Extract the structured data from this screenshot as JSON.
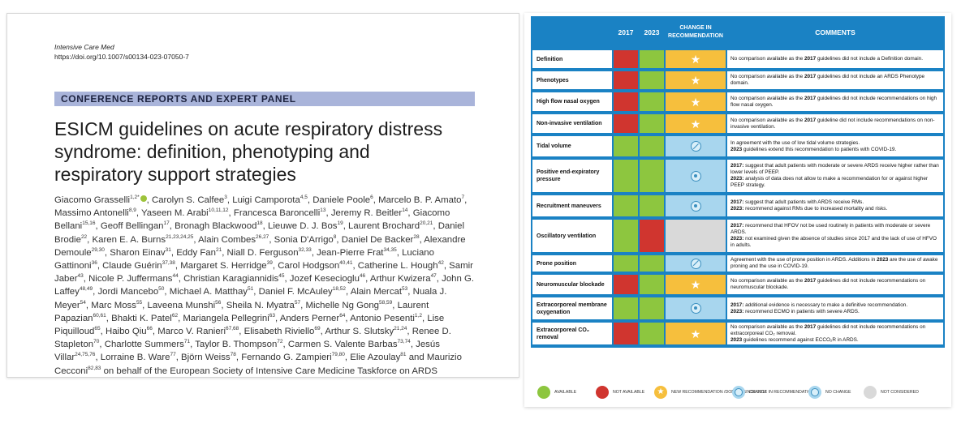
{
  "paper": {
    "journal": "Intensive Care Med",
    "doi": "https://doi.org/10.1007/s00134-023-07050-7",
    "section": "CONFERENCE REPORTS AND EXPERT PANEL",
    "title": "ESICM guidelines on acute respiratory distress syndrome: definition, phenotyping and respiratory support strategies",
    "authors": [
      {
        "n": "Giacomo Grasselli",
        "s": "1,2*",
        "orcid": true
      },
      {
        "n": "Carolyn S. Calfee",
        "s": "3"
      },
      {
        "n": "Luigi Camporota",
        "s": "4,5"
      },
      {
        "n": "Daniele Poole",
        "s": "6"
      },
      {
        "n": "Marcelo B. P. Amato",
        "s": "7"
      },
      {
        "n": "Massimo Antonelli",
        "s": "8,9"
      },
      {
        "n": "Yaseen M. Arabi",
        "s": "10,11,12"
      },
      {
        "n": "Francesca Baroncelli",
        "s": "13"
      },
      {
        "n": "Jeremy R. Beitler",
        "s": "14"
      },
      {
        "n": "Giacomo Bellani",
        "s": "15,16"
      },
      {
        "n": "Geoff Bellingan",
        "s": "17"
      },
      {
        "n": "Bronagh Blackwood",
        "s": "18"
      },
      {
        "n": "Lieuwe D. J. Bos",
        "s": "19"
      },
      {
        "n": "Laurent Brochard",
        "s": "20,21"
      },
      {
        "n": "Daniel Brodie",
        "s": "22"
      },
      {
        "n": "Karen E. A. Burns",
        "s": "21,23,24,25"
      },
      {
        "n": "Alain Combes",
        "s": "26,27"
      },
      {
        "n": "Sonia D'Arrigo",
        "s": "8"
      },
      {
        "n": "Daniel De Backer",
        "s": "28"
      },
      {
        "n": "Alexandre Demoule",
        "s": "29,30"
      },
      {
        "n": "Sharon Einav",
        "s": "31"
      },
      {
        "n": "Eddy Fan",
        "s": "21"
      },
      {
        "n": "Niall D. Ferguson",
        "s": "32,33"
      },
      {
        "n": "Jean-Pierre Frat",
        "s": "34,35"
      },
      {
        "n": "Luciano Gattinoni",
        "s": "36"
      },
      {
        "n": "Claude Guérin",
        "s": "37,38"
      },
      {
        "n": "Margaret S. Herridge",
        "s": "39"
      },
      {
        "n": "Carol Hodgson",
        "s": "40,41"
      },
      {
        "n": "Catherine L. Hough",
        "s": "42"
      },
      {
        "n": "Samir Jaber",
        "s": "43"
      },
      {
        "n": "Nicole P. Juffermans",
        "s": "44"
      },
      {
        "n": "Christian Karagiannidis",
        "s": "45"
      },
      {
        "n": "Jozef Kesecioglu",
        "s": "46"
      },
      {
        "n": "Arthur Kwizera",
        "s": "47"
      },
      {
        "n": "John G. Laffey",
        "s": "48,49"
      },
      {
        "n": "Jordi Mancebo",
        "s": "50"
      },
      {
        "n": "Michael A. Matthay",
        "s": "51"
      },
      {
        "n": "Daniel F. McAuley",
        "s": "18,52"
      },
      {
        "n": "Alain Mercat",
        "s": "53"
      },
      {
        "n": "Nuala J. Meyer",
        "s": "54"
      },
      {
        "n": "Marc Moss",
        "s": "55"
      },
      {
        "n": "Laveena Munshi",
        "s": "56"
      },
      {
        "n": "Sheila N. Myatra",
        "s": "57"
      },
      {
        "n": "Michelle Ng Gong",
        "s": "58,59"
      },
      {
        "n": "Laurent Papazian",
        "s": "60,61"
      },
      {
        "n": "Bhakti K. Patel",
        "s": "62"
      },
      {
        "n": "Mariangela Pellegrini",
        "s": "63"
      },
      {
        "n": "Anders Perner",
        "s": "64"
      },
      {
        "n": "Antonio Pesenti",
        "s": "1,2"
      },
      {
        "n": "Lise Piquilloud",
        "s": "65"
      },
      {
        "n": "Haibo Qiu",
        "s": "66"
      },
      {
        "n": "Marco V. Ranieri",
        "s": "67,68"
      },
      {
        "n": "Elisabeth Riviello",
        "s": "69"
      },
      {
        "n": "Arthur S. Slutsky",
        "s": "21,24"
      },
      {
        "n": "Renee D. Stapleton",
        "s": "70"
      },
      {
        "n": "Charlotte Summers",
        "s": "71"
      },
      {
        "n": "Taylor B. Thompson",
        "s": "72"
      },
      {
        "n": "Carmen S. Valente Barbas",
        "s": "73,74"
      },
      {
        "n": "Jesús Villar",
        "s": "24,75,76"
      },
      {
        "n": "Lorraine B. Ware",
        "s": "77"
      },
      {
        "n": "Björn Weiss",
        "s": "78"
      },
      {
        "n": "Fernando G. Zampieri",
        "s": "79,80"
      },
      {
        "n": "Elie Azoulay",
        "s": "81"
      },
      {
        "n": "Maurizio Cecconi",
        "s": "82,83"
      }
    ],
    "authors_tail": "on behalf of the European Society of Intensive Care Medicine Taskforce on ARDS",
    "and_word": "and"
  },
  "table": {
    "headers": {
      "y2017": "2017",
      "y2023": "2023",
      "change": "CHANGE IN RECOMMENDATION",
      "comments": "COMMENTS"
    },
    "rows": [
      {
        "label": "Definition",
        "c2017": "red",
        "c2023": "green",
        "change": "yellow-star",
        "comment": [
          {
            "t": "No comparison available as the "
          },
          {
            "t": "2017",
            "b": true
          },
          {
            "t": " guidelines did not include a Definition domain."
          }
        ]
      },
      {
        "label": "Phenotypes",
        "c2017": "red",
        "c2023": "green",
        "change": "yellow-star",
        "comment": [
          {
            "t": "No comparison available as the "
          },
          {
            "t": "2017",
            "b": true
          },
          {
            "t": " guidelines did not include an ARDS Phenotype domain."
          }
        ]
      },
      {
        "label": "High flow nasal oxygen",
        "c2017": "red",
        "c2023": "green",
        "change": "yellow-star",
        "comment": [
          {
            "t": "No comparison available as the "
          },
          {
            "t": "2017",
            "b": true
          },
          {
            "t": " guidelines did not include recommendations on high flow nasal oxygen."
          }
        ]
      },
      {
        "label": "Non-invasive ventilation",
        "c2017": "red",
        "c2023": "green",
        "change": "yellow-star",
        "comment": [
          {
            "t": "No comparison available as the "
          },
          {
            "t": "2017",
            "b": true
          },
          {
            "t": " guideline did not include recommendations on non-invasive ventilation."
          }
        ]
      },
      {
        "label": "Tidal volume",
        "c2017": "green",
        "c2023": "green",
        "change": "blue-nochange",
        "comment": [
          {
            "t": "In agreement with the use of low tidal volume strategies."
          },
          {
            "br": true
          },
          {
            "t": "2023",
            "b": true
          },
          {
            "t": " guidelines extend this recommendation to patients with COVID-19."
          }
        ]
      },
      {
        "label": "Positive end-expiratory pressure",
        "c2017": "green",
        "c2023": "green",
        "change": "blue-change",
        "comment": [
          {
            "t": "2017:",
            "b": true
          },
          {
            "t": " suggest that adult patients with moderate or severe ARDS receive higher rather than lower levels of PEEP."
          },
          {
            "br": true
          },
          {
            "t": "2023:",
            "b": true
          },
          {
            "t": " analysis of data does not allow to make a recommendation for or against higher PEEP strategy."
          }
        ]
      },
      {
        "label": "Recruitment maneuvers",
        "c2017": "green",
        "c2023": "green",
        "change": "blue-change",
        "comment": [
          {
            "t": "2017:",
            "b": true
          },
          {
            "t": " suggest that adult patients with ARDS receive RMs."
          },
          {
            "br": true
          },
          {
            "t": "2023:",
            "b": true
          },
          {
            "t": " recommend against RMs due to increased mortality and risks."
          }
        ]
      },
      {
        "label": "Oscillatory ventilation",
        "c2017": "green",
        "c2023": "red",
        "change": "grey",
        "comment": [
          {
            "t": "2017:",
            "b": true
          },
          {
            "t": " recommend that HFOV not be used routinely in patients with moderate or severe ARDS."
          },
          {
            "br": true
          },
          {
            "t": "2023:",
            "b": true
          },
          {
            "t": " not examined given the absence of studies since 2017 and the lack of use of HFVO in adults."
          }
        ]
      },
      {
        "label": "Prone position",
        "c2017": "green",
        "c2023": "green",
        "change": "blue-nochange",
        "comment": [
          {
            "t": "Agreement with the use of prone position in ARDS. Additions in "
          },
          {
            "t": "2023",
            "b": true
          },
          {
            "t": " are the use of awake proning and the use in COVID-19."
          }
        ]
      },
      {
        "label": "Neuromuscular blockade",
        "c2017": "red",
        "c2023": "green",
        "change": "yellow-star",
        "comment": [
          {
            "t": "No comparison available as the "
          },
          {
            "t": "2017",
            "b": true
          },
          {
            "t": " guidelines did not include recommendations on neuromuscular blockade."
          }
        ]
      },
      {
        "label": "Extracorporeal membrane oxygenation",
        "c2017": "green",
        "c2023": "green",
        "change": "blue-change",
        "comment": [
          {
            "t": "2017:",
            "b": true
          },
          {
            "t": " additional evidence is necessary to make a definitive recommendation."
          },
          {
            "br": true
          },
          {
            "t": "2023:",
            "b": true
          },
          {
            "t": " recommend ECMO in patients with severe ARDS."
          }
        ]
      },
      {
        "label": "Extracorporeal CO₂ removal",
        "c2017": "red",
        "c2023": "green",
        "change": "yellow-star",
        "comment": [
          {
            "t": "No comparison available as the "
          },
          {
            "t": "2017",
            "b": true
          },
          {
            "t": " guidelines did not include recommendations on extracorporeal CO₂ removal."
          },
          {
            "br": true
          },
          {
            "t": "2023",
            "b": true
          },
          {
            "t": " guidelines recommend against ECCO₂R in ARDS."
          }
        ]
      }
    ],
    "legend": [
      {
        "kind": "green",
        "label": "AVAILABLE"
      },
      {
        "kind": "red",
        "label": "NOT AVAILABLE"
      },
      {
        "kind": "yellow-star",
        "label": "NEW RECOMMENDATION /DOMAIN SINCE 2017"
      },
      {
        "kind": "blue-change",
        "label": "CHANGE IN RECOMMENDATION"
      },
      {
        "kind": "blue-nochange",
        "label": "NO CHANGE"
      },
      {
        "kind": "grey",
        "label": "NOT CONSIDERED"
      }
    ],
    "colors": {
      "green": "#8dc63f",
      "red": "#d0352f",
      "yellow": "#f6bf3d",
      "blue": "#a8d6ee",
      "grey": "#d9d9d9",
      "header": "#1a82c4",
      "banner": "#a9b4da"
    }
  }
}
